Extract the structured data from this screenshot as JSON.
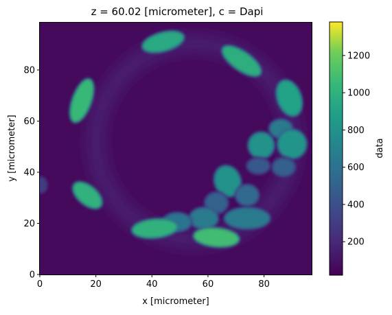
{
  "chart_data": {
    "type": "heatmap",
    "title": "z = 60.02 [micrometer], c = Dapi",
    "xlabel": "x [micrometer]",
    "ylabel": "y [micrometer]",
    "colorbar_label": "data",
    "xlim": [
      0,
      97
    ],
    "ylim": [
      0,
      98.5
    ],
    "x_ticks": [
      "0",
      "20",
      "40",
      "60",
      "80"
    ],
    "y_ticks": [
      "0",
      "20",
      "40",
      "60",
      "80"
    ],
    "colorbar_ticks": [
      "200",
      "400",
      "600",
      "800",
      "1000",
      "1200"
    ],
    "colorbar_range": [
      20,
      1380
    ],
    "colormap": "viridis",
    "background_level": 60,
    "ring_halo": {
      "center": [
        55,
        52
      ],
      "radius": 35,
      "level": 180
    },
    "nuclei": [
      {
        "x": 44,
        "y": 91,
        "rx": 7.5,
        "ry": 3.5,
        "angle": 15,
        "value": 950
      },
      {
        "x": 72,
        "y": 83.5,
        "rx": 8,
        "ry": 3.5,
        "angle": -35,
        "value": 980
      },
      {
        "x": 15,
        "y": 68,
        "rx": 8,
        "ry": 3.5,
        "angle": 70,
        "value": 1050
      },
      {
        "x": 89,
        "y": 69,
        "rx": 6.5,
        "ry": 4.5,
        "angle": -70,
        "value": 900
      },
      {
        "x": 17,
        "y": 31,
        "rx": 6,
        "ry": 3.5,
        "angle": -40,
        "value": 1000
      },
      {
        "x": 86,
        "y": 57,
        "rx": 4,
        "ry": 3.5,
        "angle": 0,
        "value": 650
      },
      {
        "x": 79,
        "y": 50.5,
        "rx": 4.5,
        "ry": 5,
        "angle": 0,
        "value": 800
      },
      {
        "x": 90,
        "y": 51,
        "rx": 5,
        "ry": 5.5,
        "angle": 0,
        "value": 820
      },
      {
        "x": 87,
        "y": 42,
        "rx": 4,
        "ry": 3.5,
        "angle": 0,
        "value": 480
      },
      {
        "x": 78,
        "y": 42.5,
        "rx": 4,
        "ry": 3,
        "angle": 0,
        "value": 450
      },
      {
        "x": 67,
        "y": 36.5,
        "rx": 4.5,
        "ry": 6,
        "angle": 20,
        "value": 800
      },
      {
        "x": 74,
        "y": 31,
        "rx": 4,
        "ry": 4,
        "angle": 0,
        "value": 550
      },
      {
        "x": 63,
        "y": 28,
        "rx": 4,
        "ry": 4,
        "angle": 0,
        "value": 500
      },
      {
        "x": 74,
        "y": 22,
        "rx": 8,
        "ry": 4,
        "angle": 0,
        "value": 650
      },
      {
        "x": 58.5,
        "y": 22,
        "rx": 5,
        "ry": 4,
        "angle": 0,
        "value": 650
      },
      {
        "x": 49,
        "y": 20.5,
        "rx": 5,
        "ry": 3.5,
        "angle": 0,
        "value": 620
      },
      {
        "x": 41,
        "y": 18,
        "rx": 8,
        "ry": 3.5,
        "angle": 5,
        "value": 1000
      },
      {
        "x": 63,
        "y": 14.5,
        "rx": 8,
        "ry": 3.5,
        "angle": -5,
        "value": 1080
      },
      {
        "x": 0.5,
        "y": 35,
        "rx": 2,
        "ry": 3,
        "angle": 0,
        "value": 300
      }
    ]
  }
}
